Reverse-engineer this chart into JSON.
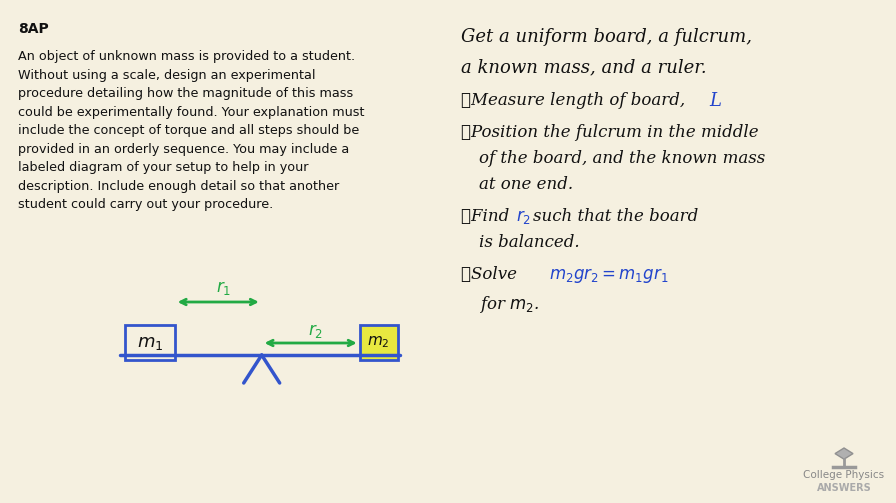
{
  "bg_color": "#f5f0e0",
  "title_text": "8AP",
  "problem_text": "An object of unknown mass is provided to a student.\nWithout using a scale, design an experimental\nprocedure detailing how the magnitude of this mass\ncould be experimentally found. Your explanation must\ninclude the concept of torque and all steps should be\nprovided in an orderly sequence. You may include a\nlabeled diagram of your setup to help in your\ndescription. Include enough detail so that another\nstudent could carry out your procedure.",
  "logo_text1": "College Physics",
  "logo_text2": "ANSWERS",
  "board_color": "#3355cc",
  "box1_color": "#3355cc",
  "box2_color": "#e8e840",
  "arrow_color": "#22aa44",
  "fulcrum_color": "#3355cc",
  "handwriting_color": "#111111",
  "blue_ink_color": "#2244cc",
  "logo_color": "#aaaaaa"
}
